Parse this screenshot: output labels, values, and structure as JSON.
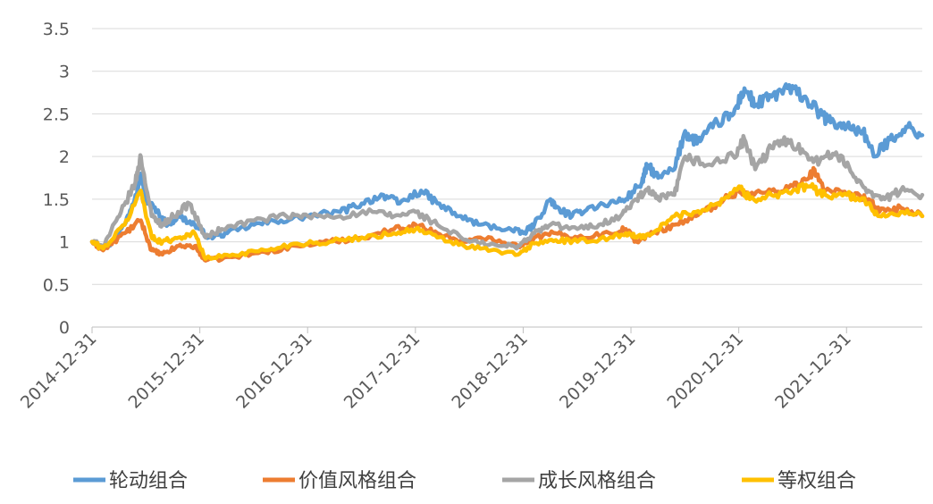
{
  "chart_data": {
    "type": "line",
    "title": "",
    "xlabel": "",
    "ylabel": "",
    "ylim": [
      0,
      3.5
    ],
    "y_ticks": [
      "0",
      "0.5",
      "1",
      "1.5",
      "2",
      "2.5",
      "3",
      "3.5"
    ],
    "x_ticks": [
      "2014-12-31",
      "2015-12-31",
      "2016-12-31",
      "2017-12-31",
      "2018-12-31",
      "2019-12-31",
      "2020-12-31",
      "2021-12-31"
    ],
    "x_unit": "year",
    "x_range": [
      2014.9973,
      2022.7
    ],
    "grid": "horizontal",
    "legend_position": "bottom",
    "series": [
      {
        "name": "轮动组合",
        "color": "#5B9BD5",
        "x": [
          2014.9973,
          2015.15,
          2015.3,
          2015.4,
          2015.45,
          2015.5,
          2015.6,
          2015.7,
          2015.8,
          2015.95,
          2016.08,
          2016.25,
          2016.5,
          2016.75,
          2017.0,
          2017.3,
          2017.5,
          2017.7,
          2017.85,
          2018.05,
          2018.2,
          2018.4,
          2018.6,
          2018.85,
          2019.0,
          2019.1,
          2019.25,
          2019.3,
          2019.45,
          2019.6,
          2019.8,
          2019.95,
          2020.1,
          2020.15,
          2020.25,
          2020.4,
          2020.5,
          2020.55,
          2020.65,
          2020.8,
          2020.95,
          2021.05,
          2021.15,
          2021.3,
          2021.45,
          2021.6,
          2021.75,
          2021.85,
          2022.0,
          2022.15,
          2022.25,
          2022.4,
          2022.55,
          2022.7
        ],
        "values": [
          1.0,
          0.95,
          1.2,
          1.55,
          1.8,
          1.5,
          1.35,
          1.2,
          1.3,
          1.2,
          1.05,
          1.1,
          1.2,
          1.25,
          1.3,
          1.35,
          1.45,
          1.55,
          1.45,
          1.6,
          1.45,
          1.3,
          1.2,
          1.15,
          1.1,
          1.2,
          1.5,
          1.4,
          1.3,
          1.4,
          1.45,
          1.5,
          1.7,
          1.9,
          1.75,
          1.85,
          2.3,
          2.2,
          2.2,
          2.4,
          2.5,
          2.8,
          2.6,
          2.7,
          2.8,
          2.7,
          2.5,
          2.4,
          2.35,
          2.3,
          2.0,
          2.2,
          2.35,
          2.25
        ]
      },
      {
        "name": "价值风格组合",
        "color": "#ED7D31",
        "x": [
          2014.9973,
          2015.1,
          2015.3,
          2015.45,
          2015.55,
          2015.65,
          2015.8,
          2015.95,
          2016.05,
          2016.3,
          2016.6,
          2016.9,
          2017.2,
          2017.5,
          2017.8,
          2018.0,
          2018.2,
          2018.45,
          2018.7,
          2018.95,
          2019.1,
          2019.3,
          2019.5,
          2019.8,
          2019.95,
          2020.05,
          2020.2,
          2020.4,
          2020.6,
          2020.8,
          2021.0,
          2021.1,
          2021.3,
          2021.5,
          2021.65,
          2021.7,
          2021.8,
          2022.0,
          2022.2,
          2022.3,
          2022.5,
          2022.7
        ],
        "values": [
          1.0,
          0.9,
          1.1,
          1.25,
          0.9,
          0.85,
          0.95,
          0.95,
          0.78,
          0.82,
          0.88,
          0.95,
          1.0,
          1.05,
          1.15,
          1.2,
          1.1,
          1.0,
          1.05,
          0.95,
          1.05,
          1.1,
          1.05,
          1.1,
          1.15,
          1.0,
          1.1,
          1.2,
          1.3,
          1.45,
          1.6,
          1.55,
          1.6,
          1.65,
          1.75,
          1.85,
          1.6,
          1.55,
          1.5,
          1.35,
          1.4,
          1.3
        ]
      },
      {
        "name": "成长风格组合",
        "color": "#A5A5A5",
        "x": [
          2014.9973,
          2015.1,
          2015.25,
          2015.4,
          2015.45,
          2015.55,
          2015.65,
          2015.75,
          2015.9,
          2016.05,
          2016.2,
          2016.5,
          2016.8,
          2017.0,
          2017.3,
          2017.6,
          2017.8,
          2018.0,
          2018.2,
          2018.5,
          2018.8,
          2018.95,
          2019.1,
          2019.25,
          2019.5,
          2019.7,
          2019.9,
          2020.05,
          2020.15,
          2020.25,
          2020.4,
          2020.5,
          2020.7,
          2020.95,
          2021.05,
          2021.15,
          2021.3,
          2021.45,
          2021.6,
          2021.75,
          2021.9,
          2022.05,
          2022.2,
          2022.35,
          2022.5,
          2022.7
        ],
        "values": [
          1.0,
          0.95,
          1.3,
          1.7,
          2.0,
          1.3,
          1.2,
          1.3,
          1.45,
          1.05,
          1.15,
          1.25,
          1.3,
          1.3,
          1.3,
          1.35,
          1.3,
          1.35,
          1.2,
          1.0,
          0.95,
          0.95,
          1.1,
          1.2,
          1.15,
          1.2,
          1.3,
          1.5,
          1.6,
          1.5,
          1.55,
          2.0,
          1.9,
          2.0,
          2.2,
          1.85,
          2.1,
          2.2,
          2.05,
          1.95,
          2.05,
          1.8,
          1.6,
          1.5,
          1.6,
          1.55
        ]
      },
      {
        "name": "等权组合",
        "color": "#FFC000",
        "x": [
          2014.9973,
          2015.1,
          2015.3,
          2015.45,
          2015.55,
          2015.65,
          2015.8,
          2015.95,
          2016.05,
          2016.3,
          2016.6,
          2016.9,
          2017.2,
          2017.5,
          2017.8,
          2018.0,
          2018.2,
          2018.45,
          2018.7,
          2018.95,
          2019.1,
          2019.3,
          2019.5,
          2019.8,
          2019.95,
          2020.05,
          2020.2,
          2020.4,
          2020.6,
          2020.8,
          2021.0,
          2021.1,
          2021.3,
          2021.5,
          2021.65,
          2021.8,
          2022.0,
          2022.2,
          2022.3,
          2022.5,
          2022.7
        ],
        "values": [
          1.0,
          0.92,
          1.2,
          1.6,
          1.05,
          1.0,
          1.05,
          1.1,
          0.8,
          0.85,
          0.9,
          0.98,
          1.0,
          1.05,
          1.1,
          1.15,
          1.05,
          0.95,
          0.9,
          0.85,
          0.98,
          1.02,
          1.0,
          1.05,
          1.1,
          1.05,
          1.1,
          1.3,
          1.35,
          1.45,
          1.65,
          1.5,
          1.55,
          1.6,
          1.65,
          1.55,
          1.55,
          1.45,
          1.3,
          1.35,
          1.3
        ]
      }
    ]
  }
}
